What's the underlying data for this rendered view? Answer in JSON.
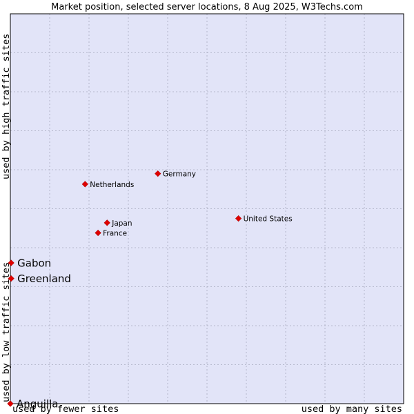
{
  "chart_data": {
    "type": "scatter",
    "title": "Market position, selected server locations, 8 Aug 2025, W3Techs.com",
    "xlabel_low": "used by fewer sites",
    "xlabel_high": "used by many sites",
    "ylabel_low": "used by low traffic sites",
    "ylabel_high": "used by high traffic sites",
    "xlim": [
      0,
      100
    ],
    "ylim": [
      0,
      100
    ],
    "grid": true,
    "colors": {
      "plot_bg": "#e2e4f8",
      "grid": "#a8aabf",
      "point": "#e00000",
      "border": "#000000"
    },
    "points": [
      {
        "name": "United States",
        "x": 58.0,
        "y": 47.5,
        "emphasis": "small"
      },
      {
        "name": "Germany",
        "x": 37.5,
        "y": 59.0,
        "emphasis": "small"
      },
      {
        "name": "Netherlands",
        "x": 19.0,
        "y": 56.3,
        "emphasis": "small"
      },
      {
        "name": "Japan",
        "x": 24.6,
        "y": 46.4,
        "emphasis": "small"
      },
      {
        "name": "France",
        "x": 22.3,
        "y": 43.8,
        "emphasis": "small"
      },
      {
        "name": "Gabon",
        "x": 0.2,
        "y": 36.1,
        "emphasis": "big"
      },
      {
        "name": "Greenland",
        "x": 0.2,
        "y": 32.1,
        "emphasis": "big"
      },
      {
        "name": "Anguilla",
        "x": 0.0,
        "y": 0.0,
        "emphasis": "big"
      }
    ]
  }
}
